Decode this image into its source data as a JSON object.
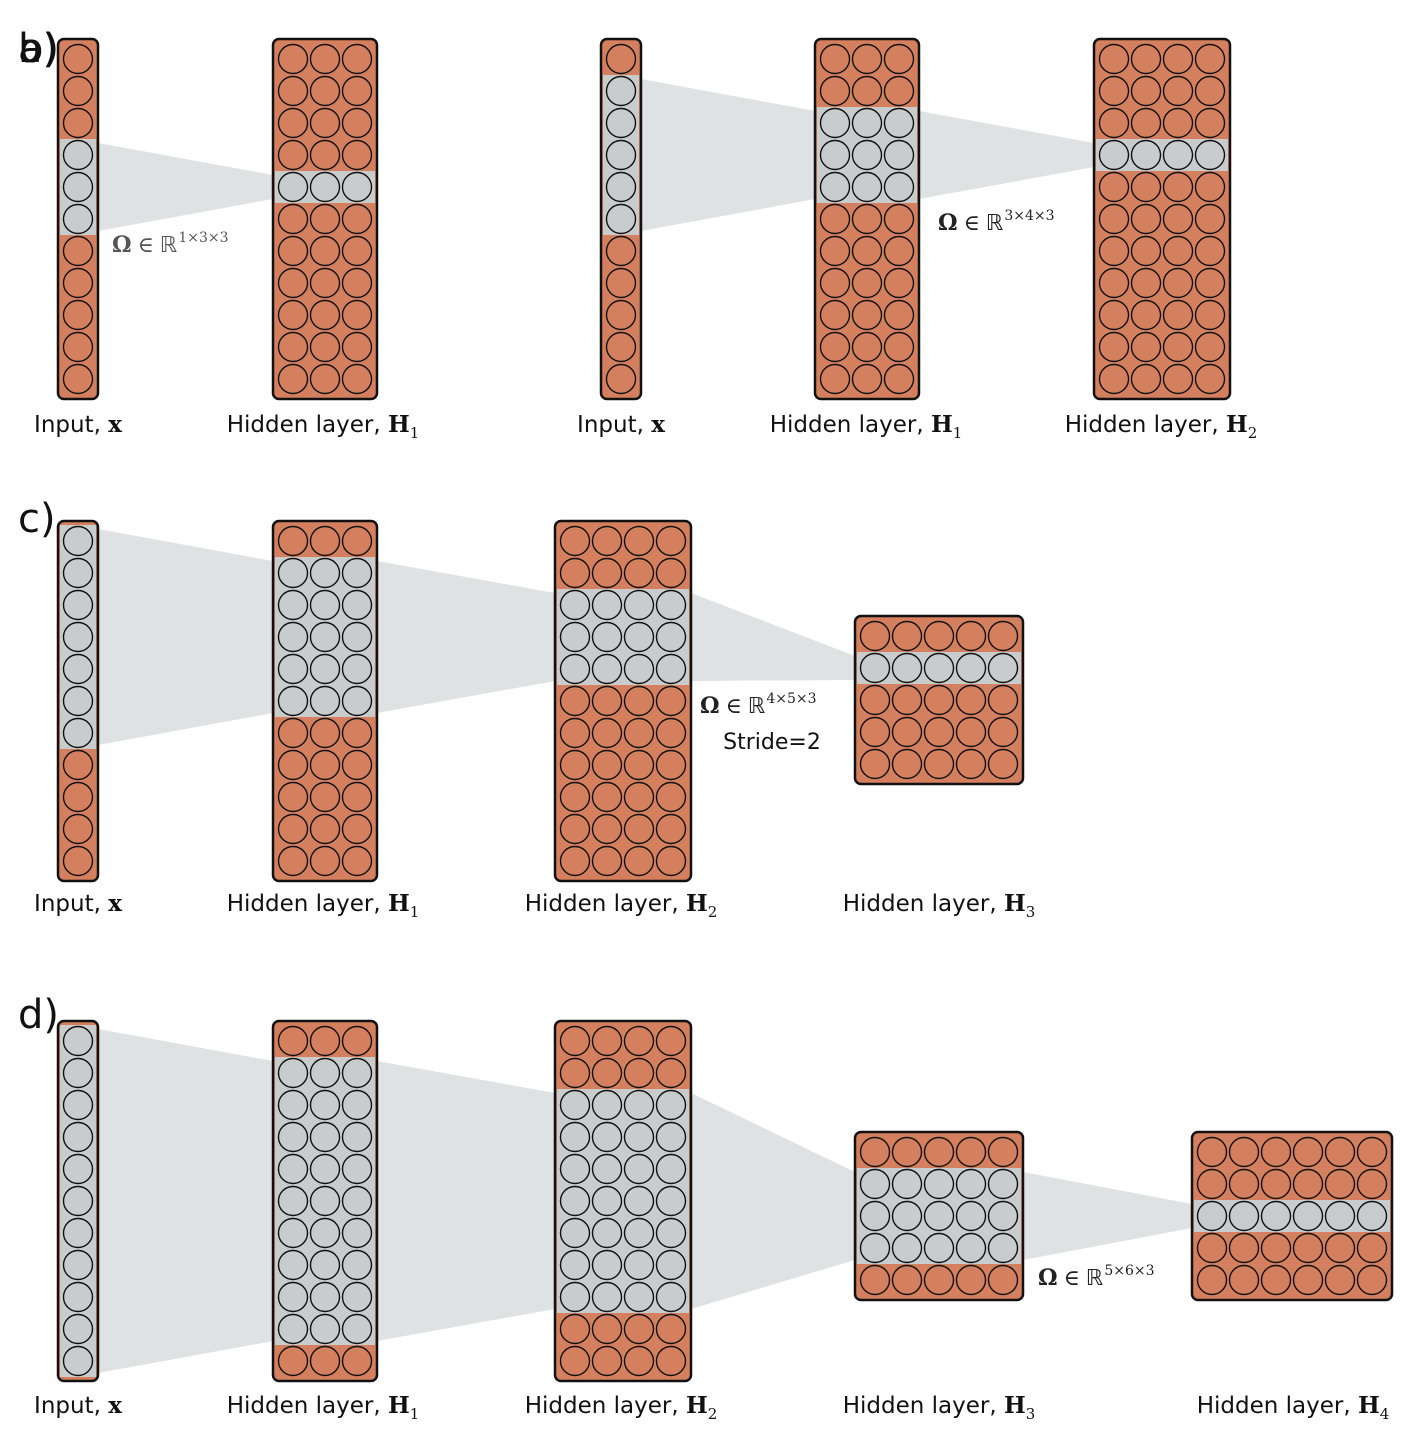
{
  "figure": {
    "panels": [
      {
        "id": "a",
        "label": "a)",
        "annotations": [
          {
            "omega": "Ω",
            "member": "∈",
            "field": "ℝ",
            "dims": "1×3×3",
            "color": "#555555"
          }
        ],
        "layers": [
          {
            "caption": "Input, ",
            "symbol": "x",
            "subscript": "",
            "cols": 1,
            "rows": 11,
            "active_rows": [
              3,
              5
            ]
          },
          {
            "caption": "Hidden layer, ",
            "symbol": "H",
            "subscript": "1",
            "cols": 3,
            "rows": 11,
            "active_rows": [
              4,
              4
            ]
          }
        ]
      },
      {
        "id": "b",
        "label": "b)",
        "annotations": [
          {
            "omega": "Ω",
            "member": "∈",
            "field": "ℝ",
            "dims": "3×4×3",
            "color": "#222222"
          }
        ],
        "layers": [
          {
            "caption": "Input, ",
            "symbol": "x",
            "subscript": "",
            "cols": 1,
            "rows": 11,
            "active_rows": [
              1,
              5
            ]
          },
          {
            "caption": "Hidden layer, ",
            "symbol": "H",
            "subscript": "1",
            "cols": 3,
            "rows": 11,
            "active_rows": [
              2,
              4
            ]
          },
          {
            "caption": "Hidden layer, ",
            "symbol": "H",
            "subscript": "2",
            "cols": 4,
            "rows": 11,
            "active_rows": [
              3,
              3
            ]
          }
        ]
      },
      {
        "id": "c",
        "label": "c)",
        "annotations": [
          {
            "omega": "Ω",
            "member": "∈",
            "field": "ℝ",
            "dims": "4×5×3",
            "color": "#222222",
            "stride": "Stride=2"
          }
        ],
        "layers": [
          {
            "caption": "Input, ",
            "symbol": "x",
            "subscript": "",
            "cols": 1,
            "rows": 11,
            "active_rows": [
              0,
              6
            ]
          },
          {
            "caption": "Hidden layer, ",
            "symbol": "H",
            "subscript": "1",
            "cols": 3,
            "rows": 11,
            "active_rows": [
              1,
              5
            ]
          },
          {
            "caption": "Hidden layer, ",
            "symbol": "H",
            "subscript": "2",
            "cols": 4,
            "rows": 11,
            "active_rows": [
              2,
              4
            ]
          },
          {
            "caption": "Hidden layer, ",
            "symbol": "H",
            "subscript": "3",
            "cols": 5,
            "rows": 5,
            "active_rows": [
              1,
              1
            ]
          }
        ]
      },
      {
        "id": "d",
        "label": "d)",
        "annotations": [
          {
            "omega": "Ω",
            "member": "∈",
            "field": "ℝ",
            "dims": "5×6×3",
            "color": "#222222"
          }
        ],
        "layers": [
          {
            "caption": "Input, ",
            "symbol": "x",
            "subscript": "",
            "cols": 1,
            "rows": 11,
            "active_rows": [
              0,
              10
            ]
          },
          {
            "caption": "Hidden layer, ",
            "symbol": "H",
            "subscript": "1",
            "cols": 3,
            "rows": 11,
            "active_rows": [
              1,
              9
            ]
          },
          {
            "caption": "Hidden layer, ",
            "symbol": "H",
            "subscript": "2",
            "cols": 4,
            "rows": 11,
            "active_rows": [
              2,
              8
            ]
          },
          {
            "caption": "Hidden layer, ",
            "symbol": "H",
            "subscript": "3",
            "cols": 5,
            "rows": 5,
            "active_rows": [
              1,
              3
            ]
          },
          {
            "caption": "Hidden layer, ",
            "symbol": "H",
            "subscript": "4",
            "cols": 6,
            "rows": 5,
            "active_rows": [
              2,
              2
            ]
          }
        ]
      }
    ],
    "colors": {
      "inactive_neuron": "#d4805e",
      "active_neuron": "#c8cccd",
      "receptive_field": "#dfe2e2",
      "outline": "#111111"
    }
  }
}
